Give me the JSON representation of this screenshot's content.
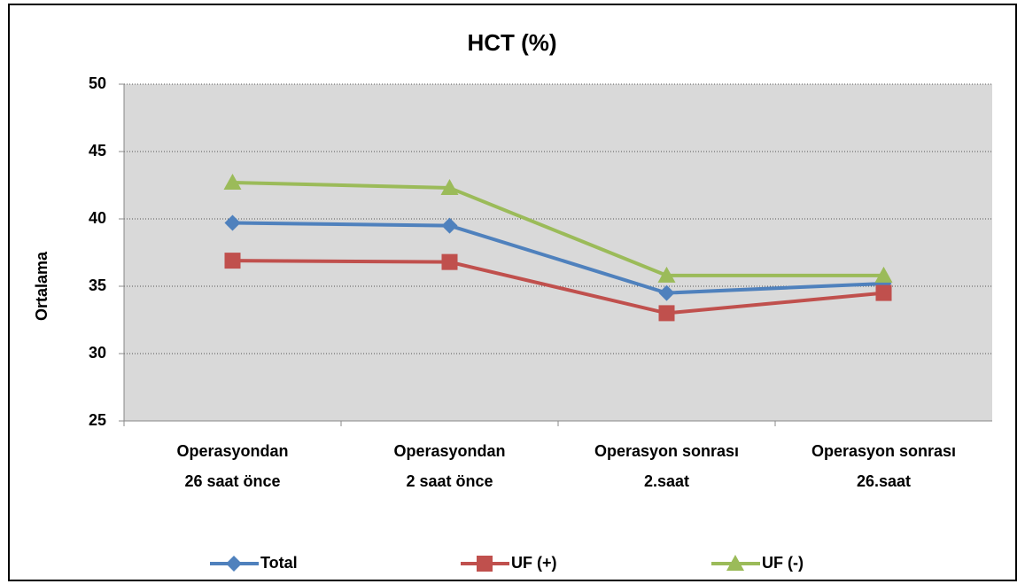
{
  "chart_data": {
    "type": "line",
    "title": "HCT (%)",
    "y_label": "Ortalama",
    "categories": [
      "Operasyondan\n26 saat önce",
      "Operasyondan\n2 saat önce",
      "Operasyon sonrası\n2.saat",
      "Operasyon sonrası\n26.saat"
    ],
    "series": [
      {
        "name": "Total",
        "color": "#4f81bd",
        "marker": "diamond",
        "values": [
          39.7,
          39.5,
          34.5,
          35.2
        ]
      },
      {
        "name": "UF (+)",
        "color": "#c0504d",
        "marker": "square",
        "values": [
          36.9,
          36.8,
          33.0,
          34.5
        ]
      },
      {
        "name": "UF (-)",
        "color": "#9bbb59",
        "marker": "triangle",
        "values": [
          42.7,
          42.3,
          35.8,
          35.8
        ]
      }
    ],
    "ylim": [
      25,
      50
    ],
    "yticks": [
      25,
      30,
      35,
      40,
      45,
      50
    ],
    "grid": true,
    "legend": "bottom"
  }
}
